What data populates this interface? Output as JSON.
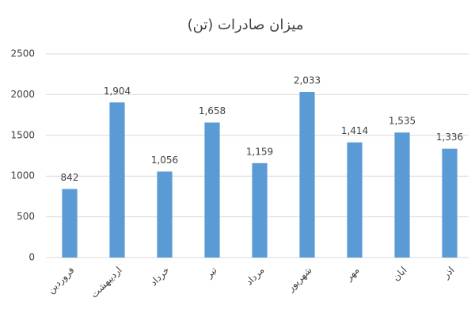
{
  "chart_data": {
    "type": "bar",
    "title": "میزان صادرات (تن)",
    "categories": [
      "فروردین",
      "اردیبهشت",
      "خرداد",
      "تیر",
      "مرداد",
      "شهریور",
      "مهر",
      "ابان",
      "اذر"
    ],
    "values": [
      842,
      1904,
      1056,
      1658,
      1159,
      2033,
      1414,
      1535,
      1336
    ],
    "value_labels": [
      "842",
      "1,904",
      "1,056",
      "1,658",
      "1,159",
      "2,033",
      "1,414",
      "1,535",
      "1,336"
    ],
    "color": "#5b9bd5",
    "ylim": [
      0,
      2500
    ],
    "yticks": [
      0,
      500,
      1000,
      1500,
      2000,
      2500
    ],
    "grid": true
  }
}
